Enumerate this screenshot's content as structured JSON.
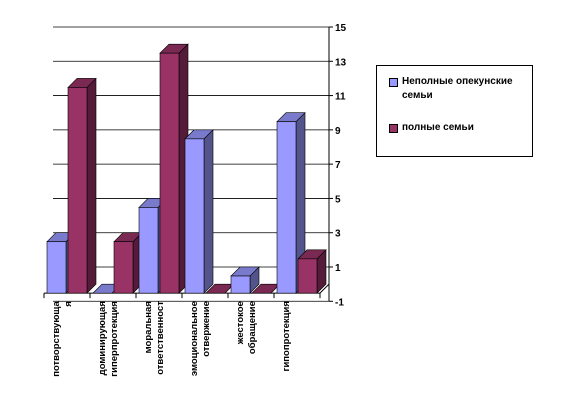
{
  "chart_data": {
    "type": "bar",
    "title": "",
    "xlabel": "",
    "ylabel": "",
    "ylim": [
      -1,
      15
    ],
    "yticks": [
      -1,
      1,
      3,
      5,
      7,
      9,
      11,
      13,
      15
    ],
    "grid": true,
    "legend_position": "right",
    "categories": [
      [
        "потворствующа",
        "я"
      ],
      [
        "доминирующая",
        "гиперпротекция"
      ],
      [
        "моральная",
        "ответственност"
      ],
      [
        "эмоциональное",
        "отвержение"
      ],
      [
        "жестокое",
        "обращение"
      ],
      [
        "гипопротекция"
      ]
    ],
    "series": [
      {
        "name": "Неполные опекунские семьи",
        "color": "#9999ff",
        "values": [
          3,
          0,
          5,
          9,
          1,
          10
        ]
      },
      {
        "name": "полные семьи",
        "color": "#993366",
        "values": [
          12,
          3,
          14,
          0,
          0,
          2
        ]
      }
    ]
  }
}
